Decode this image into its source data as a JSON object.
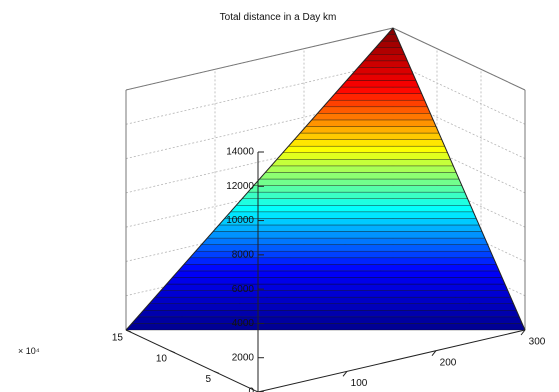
{
  "chart_data": {
    "type": "surface",
    "title": "Total distance in a Day km",
    "x_axis": {
      "ticks": [
        100,
        200,
        300
      ],
      "range": [
        0,
        300
      ]
    },
    "y_axis": {
      "ticks": [
        5,
        10,
        15
      ],
      "range": [
        0,
        15
      ],
      "multiplier_label": "× 10⁴"
    },
    "z_axis": {
      "ticks": [
        0,
        2000,
        4000,
        6000,
        8000,
        10000,
        12000,
        14000
      ],
      "range": [
        0,
        14000
      ]
    },
    "surface": {
      "formula": "z proportional to x and y",
      "corner_values": [
        {
          "x": 0,
          "y": 0,
          "z": 0
        },
        {
          "x": 300,
          "y": 0,
          "z": 0
        },
        {
          "x": 0,
          "y": 15,
          "z": 0
        },
        {
          "x": 300,
          "y": 15,
          "z": 14000
        }
      ]
    },
    "colormap": [
      "#00008f",
      "#0000ff",
      "#00ffff",
      "#ffff00",
      "#ff0000",
      "#800000"
    ]
  }
}
